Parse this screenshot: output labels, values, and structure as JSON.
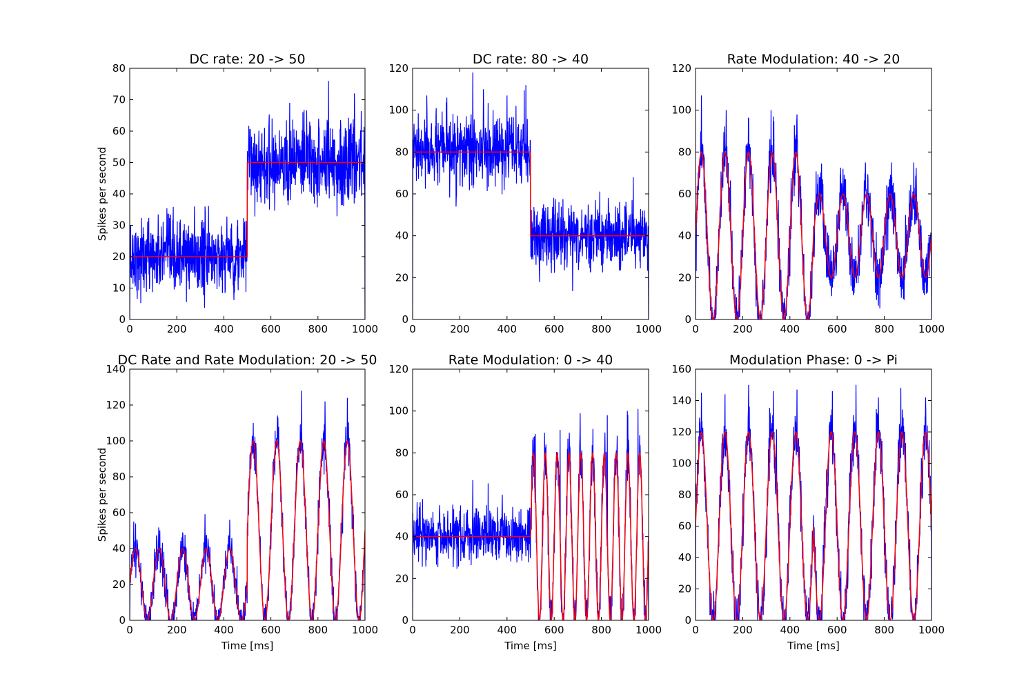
{
  "figure": {
    "background": "#ffffff"
  },
  "colors": {
    "measured": "#0000ff",
    "expected": "#ff0000",
    "axes": "#000000"
  },
  "chart_data": [
    {
      "type": "line",
      "title": "DC rate: 20 -> 50",
      "xlabel": "",
      "ylabel": "Spikes per second",
      "xlim": [
        0,
        1000
      ],
      "ylim": [
        0,
        80
      ],
      "xticks": [
        0,
        200,
        400,
        600,
        800,
        1000
      ],
      "yticks": [
        0,
        10,
        20,
        30,
        40,
        50,
        60,
        70,
        80
      ],
      "grid": false,
      "series": [
        {
          "role": "measured",
          "color": "#0000ff",
          "model": {
            "kind": "dc",
            "segments": [
              {
                "from": 0,
                "to": 500,
                "dc": 20
              },
              {
                "from": 500,
                "to": 1000,
                "dc": 50
              }
            ],
            "noise": 6.5
          },
          "peaks": [
            [
              95,
              27
            ],
            [
              165,
              27
            ],
            [
              275,
              36
            ],
            [
              315,
              31
            ],
            [
              430,
              29
            ],
            [
              605,
              64
            ],
            [
              680,
              69
            ],
            [
              765,
              63
            ],
            [
              845,
              76
            ],
            [
              955,
              72
            ]
          ]
        },
        {
          "role": "expected",
          "color": "#ff0000",
          "model": {
            "kind": "dc",
            "segments": [
              {
                "from": 0,
                "to": 500,
                "dc": 20
              },
              {
                "from": 500,
                "to": 1000,
                "dc": 50
              }
            ]
          }
        }
      ]
    },
    {
      "type": "line",
      "title": "DC rate: 80 -> 40",
      "xlabel": "",
      "ylabel": "",
      "xlim": [
        0,
        1000
      ],
      "ylim": [
        0,
        120
      ],
      "xticks": [
        0,
        200,
        400,
        600,
        800,
        1000
      ],
      "yticks": [
        0,
        20,
        40,
        60,
        80,
        100,
        120
      ],
      "grid": false,
      "series": [
        {
          "role": "measured",
          "color": "#0000ff",
          "model": {
            "kind": "dc",
            "segments": [
              {
                "from": 0,
                "to": 500,
                "dc": 80
              },
              {
                "from": 500,
                "to": 1000,
                "dc": 40
              }
            ],
            "noise": 8
          },
          "peaks": [
            [
              60,
              107
            ],
            [
              145,
              106
            ],
            [
              255,
              118
            ],
            [
              300,
              110
            ],
            [
              400,
              107
            ],
            [
              480,
              112
            ],
            [
              620,
              56
            ],
            [
              775,
              57
            ],
            [
              930,
              57
            ]
          ]
        },
        {
          "role": "expected",
          "color": "#ff0000",
          "model": {
            "kind": "dc",
            "segments": [
              {
                "from": 0,
                "to": 500,
                "dc": 80
              },
              {
                "from": 500,
                "to": 1000,
                "dc": 40
              }
            ]
          }
        }
      ]
    },
    {
      "type": "line",
      "title": "Rate Modulation: 40 -> 20",
      "xlabel": "",
      "ylabel": "",
      "xlim": [
        0,
        1000
      ],
      "ylim": [
        0,
        120
      ],
      "xticks": [
        0,
        200,
        400,
        600,
        800,
        1000
      ],
      "yticks": [
        0,
        20,
        40,
        60,
        80,
        100,
        120
      ],
      "grid": false,
      "series": [
        {
          "role": "measured",
          "color": "#0000ff",
          "model": {
            "kind": "sine",
            "freq_hz": 10,
            "segments": [
              {
                "from": 0,
                "to": 500,
                "dc": 40,
                "amp": 40,
                "phase": 0
              },
              {
                "from": 500,
                "to": 1000,
                "dc": 40,
                "amp": 20,
                "phase": 0
              }
            ],
            "noise": 7
          },
          "peaks": [
            [
              25,
              107
            ],
            [
              130,
              100
            ],
            [
              225,
              96
            ],
            [
              330,
              97
            ],
            [
              430,
              98
            ],
            [
              525,
              68
            ],
            [
              625,
              72
            ],
            [
              720,
              75
            ],
            [
              830,
              75
            ],
            [
              925,
              75
            ]
          ]
        },
        {
          "role": "expected",
          "color": "#ff0000",
          "model": {
            "kind": "sine",
            "freq_hz": 10,
            "segments": [
              {
                "from": 0,
                "to": 500,
                "dc": 40,
                "amp": 40,
                "phase": 0
              },
              {
                "from": 500,
                "to": 1000,
                "dc": 40,
                "amp": 20,
                "phase": 0
              }
            ]
          }
        }
      ]
    },
    {
      "type": "line",
      "title": "DC Rate and Rate Modulation: 20 -> 50",
      "xlabel": "Time [ms]",
      "ylabel": "Spikes per second",
      "xlim": [
        0,
        1000
      ],
      "ylim": [
        0,
        140
      ],
      "xticks": [
        0,
        200,
        400,
        600,
        800,
        1000
      ],
      "yticks": [
        0,
        20,
        40,
        60,
        80,
        100,
        120,
        140
      ],
      "grid": false,
      "series": [
        {
          "role": "measured",
          "color": "#0000ff",
          "model": {
            "kind": "sine",
            "freq_hz": 10,
            "segments": [
              {
                "from": 0,
                "to": 500,
                "dc": 20,
                "amp": 20,
                "phase": 0
              },
              {
                "from": 500,
                "to": 1000,
                "dc": 50,
                "amp": 50,
                "phase": 0
              }
            ],
            "noise": 6
          },
          "peaks": [
            [
              25,
              54
            ],
            [
              125,
              48
            ],
            [
              225,
              49
            ],
            [
              325,
              46
            ],
            [
              425,
              56
            ],
            [
              525,
              110
            ],
            [
              630,
              113
            ],
            [
              730,
              128
            ],
            [
              830,
              122
            ],
            [
              925,
              124
            ]
          ]
        },
        {
          "role": "expected",
          "color": "#ff0000",
          "model": {
            "kind": "sine",
            "freq_hz": 10,
            "segments": [
              {
                "from": 0,
                "to": 500,
                "dc": 20,
                "amp": 20,
                "phase": 0
              },
              {
                "from": 500,
                "to": 1000,
                "dc": 50,
                "amp": 50,
                "phase": 0
              }
            ]
          }
        }
      ]
    },
    {
      "type": "line",
      "title": "Rate Modulation: 0 -> 40",
      "xlabel": "Time [ms]",
      "ylabel": "",
      "xlim": [
        0,
        1000
      ],
      "ylim": [
        0,
        120
      ],
      "xticks": [
        0,
        200,
        400,
        600,
        800,
        1000
      ],
      "yticks": [
        0,
        20,
        40,
        60,
        80,
        100,
        120
      ],
      "grid": false,
      "series": [
        {
          "role": "measured",
          "color": "#0000ff",
          "model": {
            "kind": "sine",
            "freq_hz": 20,
            "segments": [
              {
                "from": 0,
                "to": 500,
                "dc": 40,
                "amp": 0,
                "phase": 0
              },
              {
                "from": 500,
                "to": 1000,
                "dc": 40,
                "amp": 40,
                "phase": 0
              }
            ],
            "noise": 6.5
          },
          "peaks": [
            [
              115,
              55
            ],
            [
              255,
              67
            ],
            [
              360,
              54
            ],
            [
              520,
              89
            ],
            [
              625,
              91
            ],
            [
              710,
              99
            ],
            [
              825,
              98
            ],
            [
              910,
              100
            ],
            [
              955,
              101
            ]
          ]
        },
        {
          "role": "expected",
          "color": "#ff0000",
          "model": {
            "kind": "sine",
            "freq_hz": 20,
            "segments": [
              {
                "from": 0,
                "to": 500,
                "dc": 40,
                "amp": 0,
                "phase": 0
              },
              {
                "from": 500,
                "to": 1000,
                "dc": 40,
                "amp": 40,
                "phase": 0
              }
            ]
          }
        }
      ]
    },
    {
      "type": "line",
      "title": "Modulation Phase: 0 -> Pi",
      "xlabel": "Time [ms]",
      "ylabel": "",
      "xlim": [
        0,
        1000
      ],
      "ylim": [
        0,
        160
      ],
      "xticks": [
        0,
        200,
        400,
        600,
        800,
        1000
      ],
      "yticks": [
        0,
        20,
        40,
        60,
        80,
        100,
        120,
        140,
        160
      ],
      "grid": false,
      "series": [
        {
          "role": "measured",
          "color": "#0000ff",
          "model": {
            "kind": "sine",
            "freq_hz": 10,
            "segments": [
              {
                "from": 0,
                "to": 500,
                "dc": 60,
                "amp": 60,
                "phase": 0
              },
              {
                "from": 500,
                "to": 1000,
                "dc": 60,
                "amp": 60,
                "phase": 3.14159
              }
            ],
            "noise": 9
          },
          "peaks": [
            [
              25,
              145
            ],
            [
              125,
              144
            ],
            [
              225,
              150
            ],
            [
              330,
              146
            ],
            [
              430,
              147
            ],
            [
              580,
              146
            ],
            [
              680,
              150
            ],
            [
              775,
              142
            ],
            [
              870,
              148
            ],
            [
              975,
              142
            ]
          ]
        },
        {
          "role": "expected",
          "color": "#ff0000",
          "model": {
            "kind": "sine",
            "freq_hz": 10,
            "segments": [
              {
                "from": 0,
                "to": 500,
                "dc": 60,
                "amp": 60,
                "phase": 0
              },
              {
                "from": 500,
                "to": 1000,
                "dc": 60,
                "amp": 60,
                "phase": 3.14159
              }
            ]
          }
        }
      ]
    }
  ]
}
